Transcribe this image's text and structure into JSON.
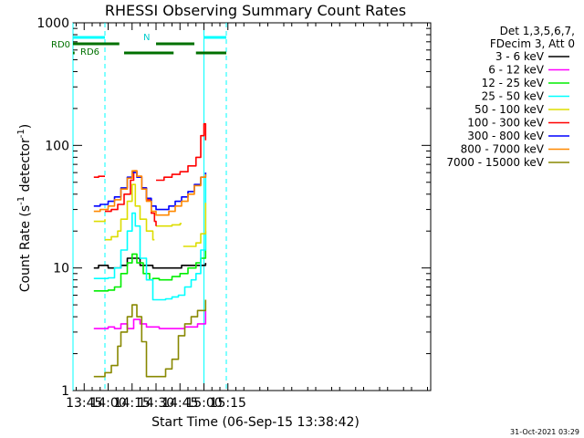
{
  "chart_data": {
    "type": "line",
    "title": "RHESSI Observing Summary Count Rates",
    "xlabel": "Start Time (06-Sep-15 13:38:42)",
    "ylabel_main": "Count Rate (s",
    "ylabel_sup1": "-1",
    "ylabel_mid": " detector",
    "ylabel_sup2": "-1",
    "ylabel_end": ")",
    "y_scale": "log",
    "xlim": [
      698,
      922
    ],
    "ylim": [
      1,
      1000
    ],
    "x_ticks": [
      {
        "value": 705,
        "label": "13:45"
      },
      {
        "value": 720,
        "label": "14:00"
      },
      {
        "value": 735,
        "label": "14:15"
      },
      {
        "value": 750,
        "label": "14:30"
      },
      {
        "value": 765,
        "label": "14:45"
      },
      {
        "value": 780,
        "label": "15:00"
      },
      {
        "value": 795,
        "label": "15:15"
      }
    ],
    "y_ticks": [
      {
        "value": 1,
        "label": "1"
      },
      {
        "value": 10,
        "label": "10"
      },
      {
        "value": 100,
        "label": "100"
      },
      {
        "value": 1000,
        "label": "1000"
      }
    ],
    "legend_header": [
      "Det 1,3,5,6,7,",
      "FDecim 3, Att 0"
    ],
    "series": [
      {
        "name": "3 - 6 keV",
        "color": "#000000",
        "segments": [
          [
            [
              711,
              10
            ],
            [
              714,
              10.5
            ],
            [
              720,
              10
            ],
            [
              728,
              10.5
            ],
            [
              732,
              12
            ],
            [
              735,
              12
            ],
            [
              740,
              10.5
            ],
            [
              748,
              10
            ],
            [
              752,
              10
            ],
            [
              760,
              10
            ],
            [
              766,
              10.5
            ],
            [
              772,
              10.5
            ],
            [
              778,
              10.5
            ],
            [
              781,
              11
            ]
          ]
        ]
      },
      {
        "name": "6 - 12 keV",
        "color": "#ff00ff",
        "segments": [
          [
            [
              711,
              3.2
            ],
            [
              716,
              3.2
            ],
            [
              720,
              3.3
            ],
            [
              724,
              3.2
            ],
            [
              728,
              3.5
            ],
            [
              732,
              3.2
            ],
            [
              736,
              3.8
            ],
            [
              740,
              3.5
            ],
            [
              744,
              3.3
            ],
            [
              748,
              3.3
            ],
            [
              752,
              3.2
            ],
            [
              756,
              3.2
            ],
            [
              760,
              3.2
            ],
            [
              764,
              3.2
            ],
            [
              768,
              3.3
            ],
            [
              772,
              3.3
            ],
            [
              776,
              3.5
            ],
            [
              781,
              4.5
            ]
          ]
        ]
      },
      {
        "name": "12 - 25 keV",
        "color": "#00ee00",
        "segments": [
          [
            [
              711,
              6.5
            ],
            [
              716,
              6.5
            ],
            [
              720,
              6.6
            ],
            [
              724,
              7
            ],
            [
              728,
              9
            ],
            [
              732,
              11
            ],
            [
              735,
              13
            ],
            [
              738,
              11
            ],
            [
              742,
              9
            ],
            [
              746,
              8
            ],
            [
              748,
              8.2
            ],
            [
              752,
              8
            ],
            [
              756,
              8
            ],
            [
              760,
              8.5
            ],
            [
              765,
              9
            ],
            [
              770,
              10
            ],
            [
              775,
              11
            ],
            [
              778,
              12
            ],
            [
              781,
              20
            ]
          ]
        ]
      },
      {
        "name": "25 - 50 keV",
        "color": "#00ffff",
        "segments": [
          [
            [
              711,
              8.2
            ],
            [
              716,
              8.2
            ],
            [
              720,
              8.3
            ],
            [
              724,
              10
            ],
            [
              728,
              14
            ],
            [
              732,
              20
            ],
            [
              735,
              28
            ],
            [
              737,
              22
            ],
            [
              740,
              12
            ],
            [
              744,
              8
            ],
            [
              748,
              5.5
            ],
            [
              752,
              5.5
            ],
            [
              756,
              5.6
            ],
            [
              760,
              5.8
            ],
            [
              764,
              6
            ],
            [
              768,
              7
            ],
            [
              772,
              8
            ],
            [
              775,
              9
            ],
            [
              778,
              14
            ],
            [
              781,
              60
            ]
          ]
        ]
      },
      {
        "name": "50 - 100 keV",
        "color": "#dddd00",
        "segments": [
          [
            [
              711,
              24
            ],
            [
              714,
              24
            ],
            [
              718,
              25
            ]
          ],
          [
            [
              718,
              17
            ],
            [
              722,
              18
            ],
            [
              726,
              20
            ],
            [
              728,
              25
            ],
            [
              732,
              35
            ],
            [
              735,
              48
            ],
            [
              737,
              32
            ],
            [
              740,
              25
            ],
            [
              744,
              20
            ],
            [
              748,
              17
            ],
            [
              749,
              17
            ]
          ],
          [
            [
              750,
              22
            ],
            [
              755,
              22
            ],
            [
              760,
              22.5
            ],
            [
              765,
              23
            ],
            [
              766,
              23
            ]
          ],
          [
            [
              767,
              15
            ],
            [
              771,
              15
            ],
            [
              775,
              16
            ],
            [
              778,
              19
            ],
            [
              781,
              34
            ]
          ]
        ]
      },
      {
        "name": "100 - 300 keV",
        "color": "#ff0000",
        "segments": [
          [
            [
              711,
              55
            ],
            [
              714,
              56
            ],
            [
              718,
              56
            ]
          ],
          [
            [
              718,
              29
            ],
            [
              722,
              30
            ],
            [
              726,
              33
            ],
            [
              730,
              40
            ],
            [
              734,
              52
            ],
            [
              736,
              62
            ],
            [
              738,
              56
            ],
            [
              741,
              45
            ],
            [
              744,
              36
            ],
            [
              747,
              28
            ],
            [
              749,
              24
            ],
            [
              750,
              22
            ]
          ],
          [
            [
              750,
              52
            ],
            [
              755,
              55
            ],
            [
              760,
              58
            ],
            [
              765,
              61
            ],
            [
              770,
              68
            ],
            [
              775,
              80
            ],
            [
              778,
              120
            ],
            [
              780,
              150
            ],
            [
              781,
              110
            ]
          ]
        ]
      },
      {
        "name": "300 - 800 keV",
        "color": "#0000ff",
        "segments": [
          [
            [
              711,
              32
            ],
            [
              715,
              33
            ],
            [
              720,
              35
            ],
            [
              724,
              38
            ],
            [
              728,
              45
            ],
            [
              732,
              55
            ],
            [
              735,
              60
            ],
            [
              738,
              55
            ],
            [
              741,
              45
            ],
            [
              744,
              37
            ],
            [
              747,
              32
            ],
            [
              750,
              30
            ],
            [
              754,
              30
            ],
            [
              758,
              32
            ],
            [
              762,
              35
            ],
            [
              766,
              38
            ],
            [
              770,
              42
            ],
            [
              774,
              48
            ],
            [
              778,
              55
            ],
            [
              781,
              60
            ]
          ]
        ]
      },
      {
        "name": "800 - 7000 keV",
        "color": "#ff8800",
        "segments": [
          [
            [
              711,
              29
            ],
            [
              715,
              30
            ],
            [
              720,
              32
            ],
            [
              724,
              36
            ],
            [
              728,
              44
            ],
            [
              732,
              54
            ],
            [
              735,
              62
            ],
            [
              738,
              56
            ],
            [
              741,
              44
            ],
            [
              744,
              35
            ],
            [
              747,
              29
            ],
            [
              750,
              27
            ],
            [
              754,
              27
            ],
            [
              758,
              29
            ],
            [
              762,
              32
            ],
            [
              766,
              35
            ],
            [
              770,
              40
            ],
            [
              774,
              47
            ],
            [
              778,
              55
            ],
            [
              781,
              58
            ]
          ]
        ]
      },
      {
        "name": "7000 - 15000 keV",
        "color": "#888800",
        "segments": [
          [
            [
              711,
              1.3
            ],
            [
              714,
              1.3
            ],
            [
              718,
              1.4
            ],
            [
              722,
              1.6
            ],
            [
              726,
              2.3
            ],
            [
              728,
              3
            ],
            [
              732,
              4
            ],
            [
              735,
              5
            ],
            [
              738,
              4
            ],
            [
              741,
              2.5
            ],
            [
              744,
              1.3
            ],
            [
              748,
              1.3
            ],
            [
              752,
              1.3
            ],
            [
              756,
              1.5
            ],
            [
              760,
              1.8
            ],
            [
              764,
              2.8
            ],
            [
              768,
              3.5
            ],
            [
              772,
              4
            ],
            [
              776,
              4.5
            ],
            [
              781,
              5.5
            ]
          ]
        ]
      }
    ],
    "flags": [
      {
        "label": "N",
        "color": "#00ffff",
        "segments": [
          [
            698,
            718
          ],
          [
            780,
            794
          ]
        ]
      },
      {
        "label": "RD0",
        "color": "#007000",
        "segments": [
          [
            698,
            727
          ],
          [
            750,
            774
          ]
        ]
      },
      {
        "label": "RD6",
        "color": "#007000",
        "segments": [
          [
            698,
            699
          ],
          [
            730,
            761
          ],
          [
            775,
            794
          ]
        ]
      }
    ],
    "vlines": [
      {
        "x": 698,
        "color": "#00ffff",
        "style": "solid"
      },
      {
        "x": 718,
        "color": "#00ffff",
        "style": "dashed"
      },
      {
        "x": 780,
        "color": "#00ffff",
        "style": "solid"
      },
      {
        "x": 794,
        "color": "#00ffff",
        "style": "dashed"
      }
    ],
    "timestamp": "31-Oct-2021 03:29"
  }
}
